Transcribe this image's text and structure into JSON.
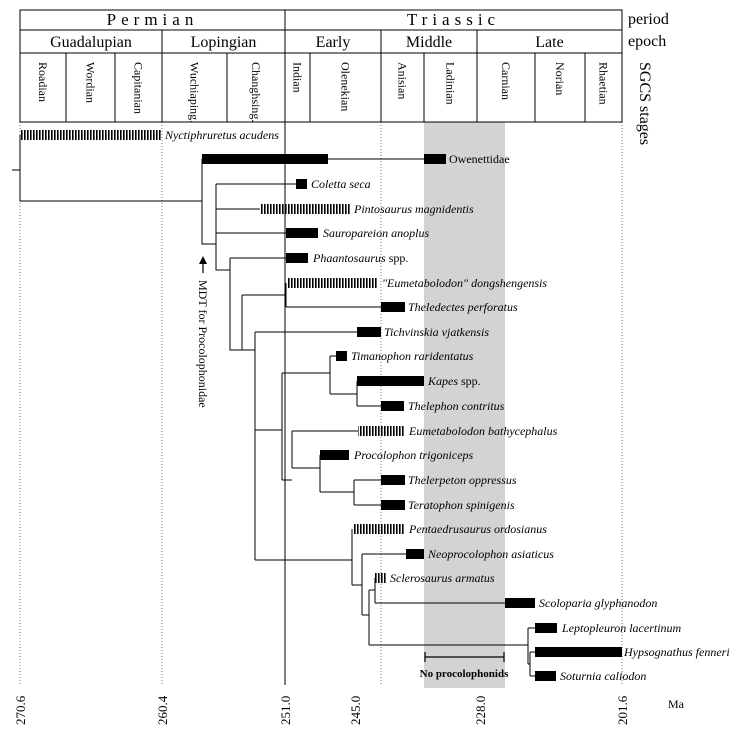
{
  "header": {
    "periods": [
      "Permian",
      "Triassic"
    ],
    "epochs": [
      "Guadalupian",
      "Lopingian",
      "Early",
      "Middle",
      "Late"
    ],
    "stages": [
      "Roadian",
      "Wordian",
      "Capitanian",
      "Wuchiaping.",
      "Changhsing.",
      "Indian",
      "Olenekian",
      "Anisian",
      "Ladinian",
      "Carnian",
      "Norian",
      "Rhaetian"
    ],
    "row_labels": [
      "period",
      "epoch",
      "SGCS stages"
    ]
  },
  "taxa": [
    {
      "name": "Nyctiphruretus acudens"
    },
    {
      "name": "Owenettidae"
    },
    {
      "name": "Coletta seca"
    },
    {
      "name": "Pintosaurus magnidentis"
    },
    {
      "name": "Sauropareion anoplus"
    },
    {
      "name": "Phaantosaurus",
      "extra": "spp."
    },
    {
      "name": "\"Eumetabolodon\" dongshengensis"
    },
    {
      "name": "Theledectes perforatus"
    },
    {
      "name": "Tichvinskia vjatkensis"
    },
    {
      "name": "Timanophon raridentatus"
    },
    {
      "name": "Kapes",
      "extra": "spp."
    },
    {
      "name": "Thelephon contritus"
    },
    {
      "name": "Eumetabolodon bathycephalus"
    },
    {
      "name": "Procolophon trigoniceps"
    },
    {
      "name": "Thelerpeton oppressus"
    },
    {
      "name": "Teratophon spinigenis"
    },
    {
      "name": "Pentaedrusaurus ordosianus"
    },
    {
      "name": "Neoprocolophon asiaticus"
    },
    {
      "name": "Sclerosaurus armatus"
    },
    {
      "name": "Scoloparia glyphanodon"
    },
    {
      "name": "Leptopleuron lacertinum"
    },
    {
      "name": "Hypsognathus fenneri"
    },
    {
      "name": "Soturnia caliodon"
    }
  ],
  "annotations": {
    "mdt": "MDT for Procolophonidae",
    "gap": "No procolophonids"
  },
  "axis": {
    "ticks": [
      "270.6",
      "260.4",
      "251.0",
      "245.0",
      "228.0",
      "201.6"
    ],
    "unit": "Ma"
  }
}
